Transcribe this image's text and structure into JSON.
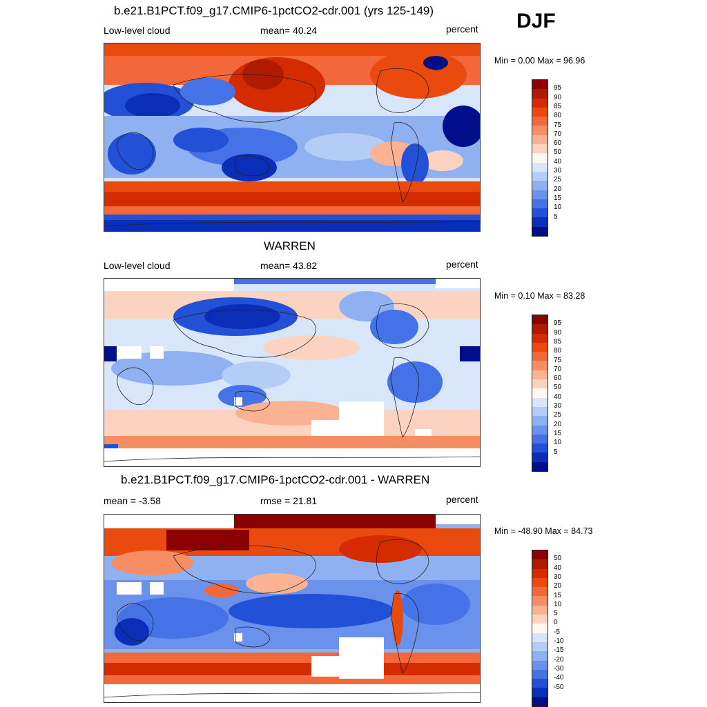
{
  "season": "DJF",
  "panels": [
    {
      "title": "b.e21.B1PCT.f09_g17.CMIP6-1pctCO2-cdr.001 (yrs 125-149)",
      "left_label": "Low-level cloud",
      "center_label": "mean=  40.24",
      "right_label": "percent",
      "minmax": "Min =   0.00 Max =  96.96",
      "colorbar": {
        "labels": [
          "95",
          "90",
          "85",
          "80",
          "75",
          "70",
          "60",
          "50",
          "40",
          "30",
          "25",
          "20",
          "15",
          "10",
          "5"
        ],
        "colors": [
          "#8b0000",
          "#b01a00",
          "#d42c00",
          "#ea4a0e",
          "#f2683a",
          "#f78d62",
          "#fab292",
          "#fbd3c0",
          "#fff6ee",
          "#d8e6fa",
          "#b4cdf6",
          "#8fb1f2",
          "#6a92ec",
          "#4572e6",
          "#2250d6",
          "#0a2eb8",
          "#000e8c"
        ]
      }
    },
    {
      "title": "WARREN",
      "left_label": "Low-level cloud",
      "center_label": "mean=  43.82",
      "right_label": "percent",
      "minmax": "Min =   0.10 Max =  83.28",
      "colorbar": {
        "labels": [
          "95",
          "90",
          "85",
          "80",
          "75",
          "70",
          "60",
          "50",
          "40",
          "30",
          "25",
          "20",
          "15",
          "10",
          "5"
        ],
        "colors": [
          "#8b0000",
          "#b01a00",
          "#d42c00",
          "#ea4a0e",
          "#f2683a",
          "#f78d62",
          "#fab292",
          "#fbd3c0",
          "#fff6ee",
          "#d8e6fa",
          "#b4cdf6",
          "#8fb1f2",
          "#6a92ec",
          "#4572e6",
          "#2250d6",
          "#0a2eb8",
          "#000e8c"
        ]
      }
    },
    {
      "title": "b.e21.B1PCT.f09_g17.CMIP6-1pctCO2-cdr.001 - WARREN",
      "left_label": "mean =  -3.58",
      "center_label": "rmse =  21.81",
      "right_label": "percent",
      "minmax": "Min = -48.90 Max =  84.73",
      "colorbar": {
        "labels": [
          "50",
          "40",
          "30",
          "20",
          "15",
          "10",
          "5",
          "0",
          "-5",
          "-10",
          "-15",
          "-20",
          "-30",
          "-40",
          "-50"
        ],
        "colors": [
          "#8b0000",
          "#b01a00",
          "#d42c00",
          "#ea4a0e",
          "#f2683a",
          "#f78d62",
          "#fab292",
          "#fbd3c0",
          "#fff6ee",
          "#d8e6fa",
          "#b4cdf6",
          "#8fb1f2",
          "#6a92ec",
          "#4572e6",
          "#2250d6",
          "#0a2eb8",
          "#000e8c"
        ]
      }
    }
  ]
}
